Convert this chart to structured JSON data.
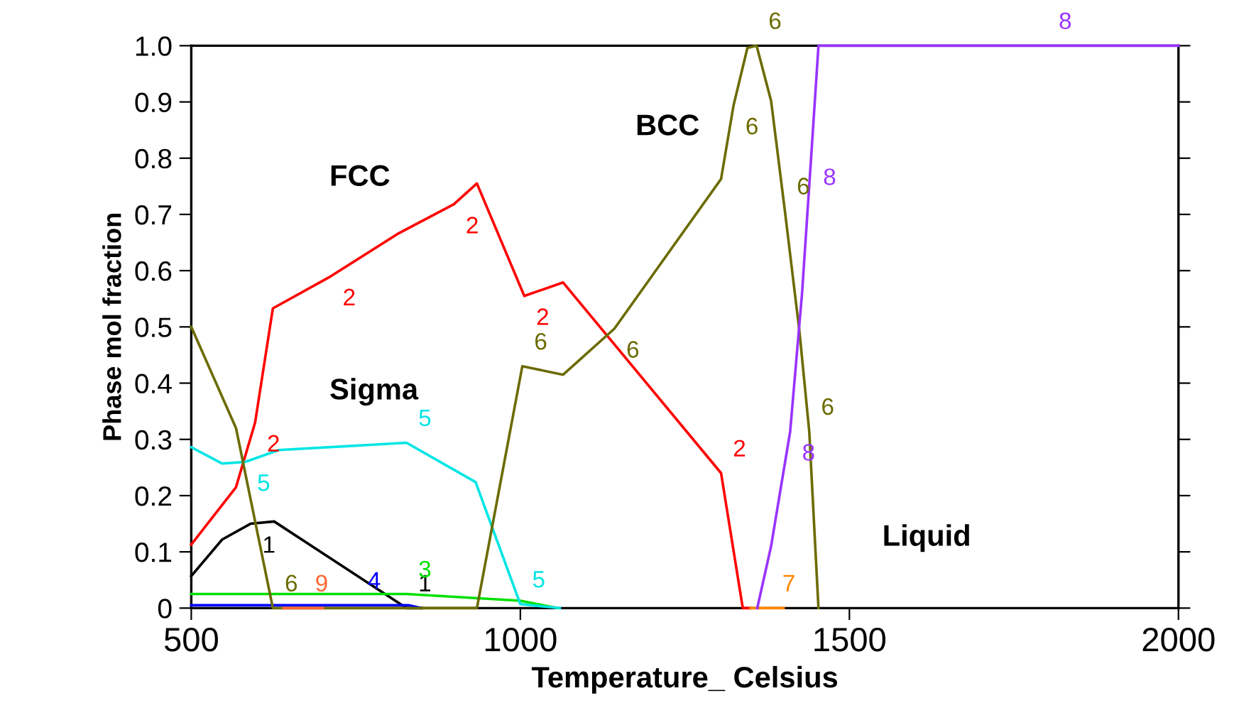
{
  "chart_data": {
    "type": "line",
    "xlabel": "Temperature_ Celsius",
    "ylabel": "Phase mol fraction",
    "xlim": [
      500,
      2000
    ],
    "ylim": [
      0,
      1
    ],
    "xticks": [
      500,
      1000,
      1500,
      2000
    ],
    "yticks": [
      0,
      0.1,
      0.2,
      0.3,
      0.4,
      0.5,
      0.6,
      0.7,
      0.8,
      0.9,
      {
        "value": 1,
        "label": "1.0"
      }
    ],
    "grid": false,
    "legend": false,
    "marker": "none",
    "line_style": "solid",
    "series": [
      {
        "name": "1",
        "color": "#000000",
        "x": [
          500,
          547,
          590,
          626,
          827,
          850
        ],
        "values": [
          0.057,
          0.122,
          0.15,
          0.154,
          0,
          0
        ]
      },
      {
        "name": "2",
        "color": "#ff0000",
        "x": [
          500,
          568,
          597,
          624,
          712,
          813,
          899,
          934,
          1006,
          1065,
          1305,
          1338,
          1350
        ],
        "values": [
          0.113,
          0.215,
          0.33,
          0.533,
          0.59,
          0.665,
          0.718,
          0.755,
          0.555,
          0.579,
          0.24,
          0,
          0
        ]
      },
      {
        "name": "3",
        "color": "#00e000",
        "x": [
          500,
          700,
          827,
          1000,
          1057
        ],
        "values": [
          0.025,
          0.025,
          0.025,
          0.013,
          0
        ]
      },
      {
        "name": "4",
        "color": "#0000ff",
        "x": [
          500,
          600,
          750,
          830,
          850
        ],
        "values": [
          0.005,
          0.005,
          0.005,
          0.005,
          0
        ]
      },
      {
        "name": "5",
        "color": "#00e5e5",
        "x": [
          500,
          547,
          582,
          633,
          827,
          932,
          1000,
          1060
        ],
        "values": [
          0.286,
          0.257,
          0.26,
          0.281,
          0.294,
          0.224,
          0.007,
          0
        ]
      },
      {
        "name": "6",
        "color": "#6b6b00",
        "x": [
          500,
          568,
          624,
          934,
          1003,
          1065,
          1143,
          1305,
          1324,
          1345,
          1359,
          1381,
          1402,
          1424,
          1439,
          1453
        ],
        "values": [
          0.5,
          0.32,
          0,
          0,
          0.43,
          0.415,
          0.497,
          0.763,
          0.894,
          0.996,
          1.0,
          0.902,
          0.706,
          0.493,
          0.314,
          0
        ]
      },
      {
        "name": "7",
        "color": "#ff8800",
        "x": [
          1350,
          1380,
          1400
        ],
        "values": [
          0,
          0,
          0
        ]
      },
      {
        "name": "8",
        "color": "#9933ff",
        "x": [
          1360,
          1381,
          1410,
          1428,
          1442,
          1453,
          1800,
          2000
        ],
        "values": [
          0,
          0.11,
          0.314,
          0.559,
          0.804,
          1.0,
          1.0,
          1.0
        ]
      },
      {
        "name": "9",
        "color": "#ff6633",
        "x": [
          640,
          670,
          700
        ],
        "values": [
          0,
          0,
          0
        ]
      }
    ],
    "annotations": [
      "FCC",
      "BCC",
      "Sigma",
      "Liquid"
    ]
  }
}
